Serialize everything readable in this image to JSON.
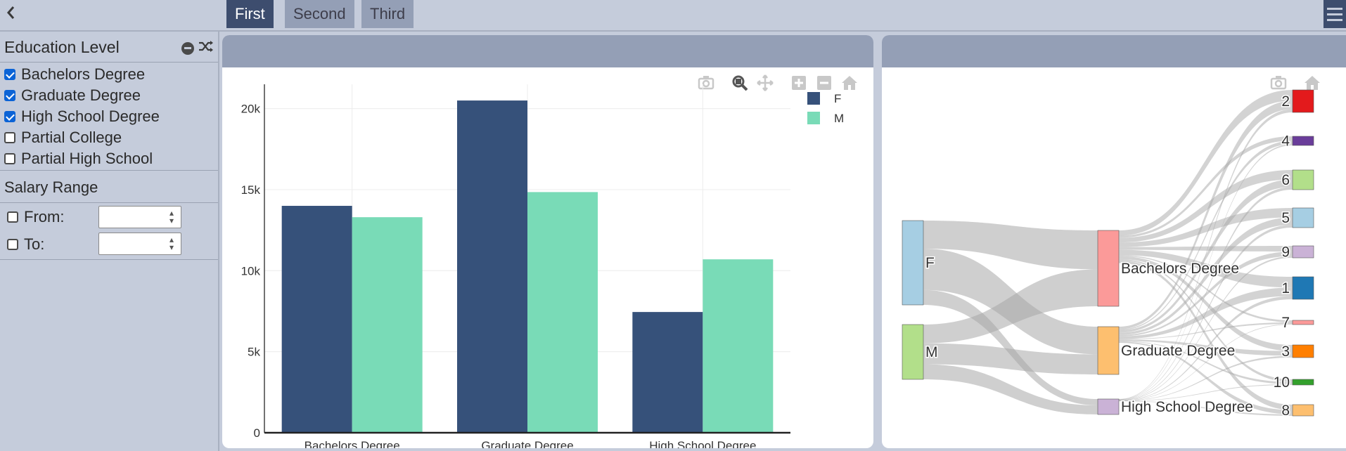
{
  "tabs": [
    {
      "label": "First",
      "active": true
    },
    {
      "label": "Second",
      "active": false
    },
    {
      "label": "Third",
      "active": false
    }
  ],
  "sidebar": {
    "education": {
      "title": "Education Level",
      "options": [
        {
          "label": "Bachelors Degree",
          "checked": true
        },
        {
          "label": "Graduate Degree",
          "checked": true
        },
        {
          "label": "High School Degree",
          "checked": true
        },
        {
          "label": "Partial College",
          "checked": false
        },
        {
          "label": "Partial High School",
          "checked": false
        }
      ]
    },
    "salary": {
      "title": "Salary Range",
      "from_label": "From:",
      "to_label": "To:",
      "from_value": "",
      "to_value": ""
    }
  },
  "icons": {
    "back": "chevron-left-icon",
    "menu": "hamburger-menu-icon",
    "camera": "camera-icon",
    "zoom": "zoom-icon",
    "pan": "pan-icon",
    "zoom_in": "zoom-in-icon",
    "zoom_out": "zoom-out-icon",
    "home": "home-icon"
  },
  "colors": {
    "F": "#36517a",
    "M": "#79dbb7",
    "active_tab": "#3d4d6e",
    "panel_header": "#949fb6"
  },
  "chart_data": [
    {
      "type": "bar",
      "categories": [
        "Bachelors Degree",
        "Graduate Degree",
        "High School Degree"
      ],
      "series": [
        {
          "name": "F",
          "values": [
            14000,
            20500,
            7450
          ]
        },
        {
          "name": "M",
          "values": [
            13300,
            14850,
            10700
          ]
        }
      ],
      "yticks": [
        "0",
        "5k",
        "10k",
        "15k",
        "20k"
      ],
      "ytick_values": [
        0,
        5000,
        10000,
        15000,
        20000
      ],
      "ylim": [
        0,
        21500
      ],
      "grid": true,
      "legend": "top-right",
      "title": "",
      "xlabel": "",
      "ylabel": ""
    },
    {
      "type": "sankey",
      "nodes": [
        {
          "label": "F",
          "color": "#a6cee3"
        },
        {
          "label": "M",
          "color": "#b2df8a"
        },
        {
          "label": "Bachelors Degree",
          "color": "#fb9a99"
        },
        {
          "label": "Graduate Degree",
          "color": "#fdbf6f"
        },
        {
          "label": "High School Degree",
          "color": "#cab2d6"
        },
        {
          "label": "2",
          "color": "#e31a1c"
        },
        {
          "label": "4",
          "color": "#6a3d9a"
        },
        {
          "label": "6",
          "color": "#b2df8a"
        },
        {
          "label": "5",
          "color": "#a6cee3"
        },
        {
          "label": "9",
          "color": "#cab2d6"
        },
        {
          "label": "1",
          "color": "#1f78b4"
        },
        {
          "label": "7",
          "color": "#fb9a99"
        },
        {
          "label": "3",
          "color": "#ff7f00"
        },
        {
          "label": "10",
          "color": "#33a02c"
        },
        {
          "label": "8",
          "color": "#fdbf6f"
        }
      ],
      "links": [
        {
          "source": "F",
          "target": "Bachelors Degree",
          "value": 14000
        },
        {
          "source": "F",
          "target": "Graduate Degree",
          "value": 20500
        },
        {
          "source": "F",
          "target": "High School Degree",
          "value": 7450
        },
        {
          "source": "M",
          "target": "Bachelors Degree",
          "value": 13300
        },
        {
          "source": "M",
          "target": "Graduate Degree",
          "value": 14850
        },
        {
          "source": "M",
          "target": "High School Degree",
          "value": 10700
        }
      ]
    }
  ]
}
